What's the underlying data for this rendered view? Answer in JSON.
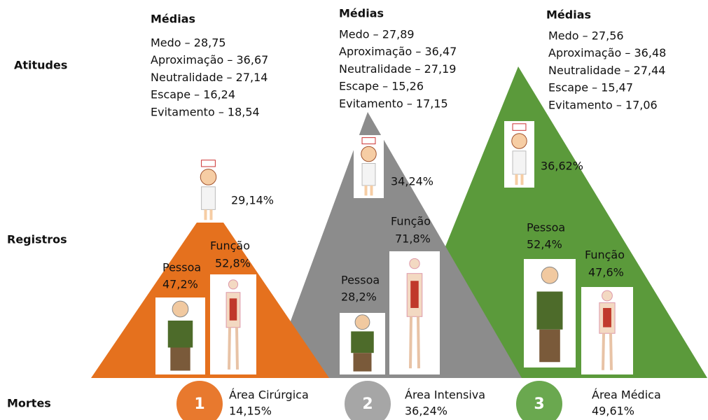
{
  "row_labels": [
    "Atitudes",
    "Registros",
    "Mortes"
  ],
  "areas": [
    {
      "heading": "Médias",
      "attitudes": [
        "Medo – 28,75",
        "Aproximação – 36,67",
        "Neutralidade – 27,14",
        "Escape – 16,24",
        "Evitamento – 18,54"
      ],
      "nurse": "29,14%",
      "pessoa_label": "Pessoa",
      "pessoa": "47,2%",
      "funcao_label": "Função",
      "funcao": "52,8%",
      "number": "1",
      "area": "Área Cirúrgica",
      "deaths": "14,15%"
    },
    {
      "heading": "Médias",
      "attitudes": [
        "Medo – 27,89",
        "Aproximação – 36,47",
        "Neutralidade – 27,19",
        "Escape – 15,26",
        "Evitamento – 17,15"
      ],
      "nurse": "34,24%",
      "pessoa_label": "Pessoa",
      "pessoa": "28,2%",
      "funcao_label": "Função",
      "funcao": "71,8%",
      "number": "2",
      "area": "Área Intensiva",
      "deaths": "36,24%"
    },
    {
      "heading": "Médias",
      "attitudes": [
        "Medo – 27,56",
        "Aproximação – 36,48",
        "Neutralidade – 27,44",
        "Escape – 15,47",
        "Evitamento – 17,06"
      ],
      "nurse": "36,62%",
      "pessoa_label": "Pessoa",
      "pessoa": "52,4%",
      "funcao_label": "Função",
      "funcao": "47,6%",
      "number": "3",
      "area": "Área Médica",
      "deaths": "49,61%"
    }
  ]
}
